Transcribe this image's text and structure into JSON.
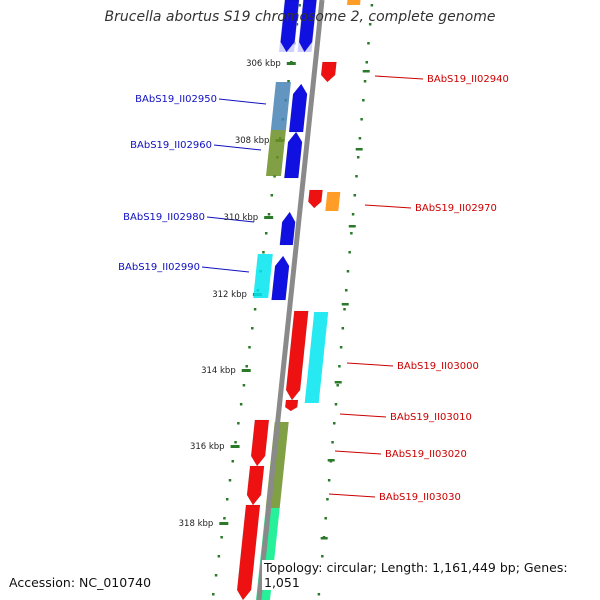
{
  "title": "Brucella abortus S19 chromosome 2, complete genome",
  "footer": {
    "accession": "Accession: NC_010740",
    "summary": "Topology: circular; Length: 1,161,449 bp; Genes: 1,051"
  },
  "colors": {
    "backbone": "#8a8a8a",
    "tick": "#2a7a2a",
    "forward_gene": "#1010e0",
    "reverse_gene": "#ee1111",
    "label_forward": "#1010c0",
    "label_reverse": "#cc0000",
    "cog_orange": "#ff8c00",
    "cog_steelblue": "#4682b4",
    "cog_olive": "#6b8e23",
    "cog_cyan": "#00e5ee",
    "cog_lavender": "#c8c8ff",
    "cog_springgreen": "#00ee88"
  },
  "scale_labels": [
    "306 kbp",
    "308 kbp",
    "310 kbp",
    "312 kbp",
    "314 kbp",
    "316 kbp",
    "318 kbp"
  ],
  "gene_labels": {
    "left": [
      "BAbS19_II02950",
      "BAbS19_II02960",
      "BAbS19_II02980",
      "BAbS19_II02990"
    ],
    "right": [
      "BAbS19_II02940",
      "BAbS19_II02970",
      "BAbS19_II03000",
      "BAbS19_II03010",
      "BAbS19_II03020",
      "BAbS19_II03030"
    ]
  }
}
